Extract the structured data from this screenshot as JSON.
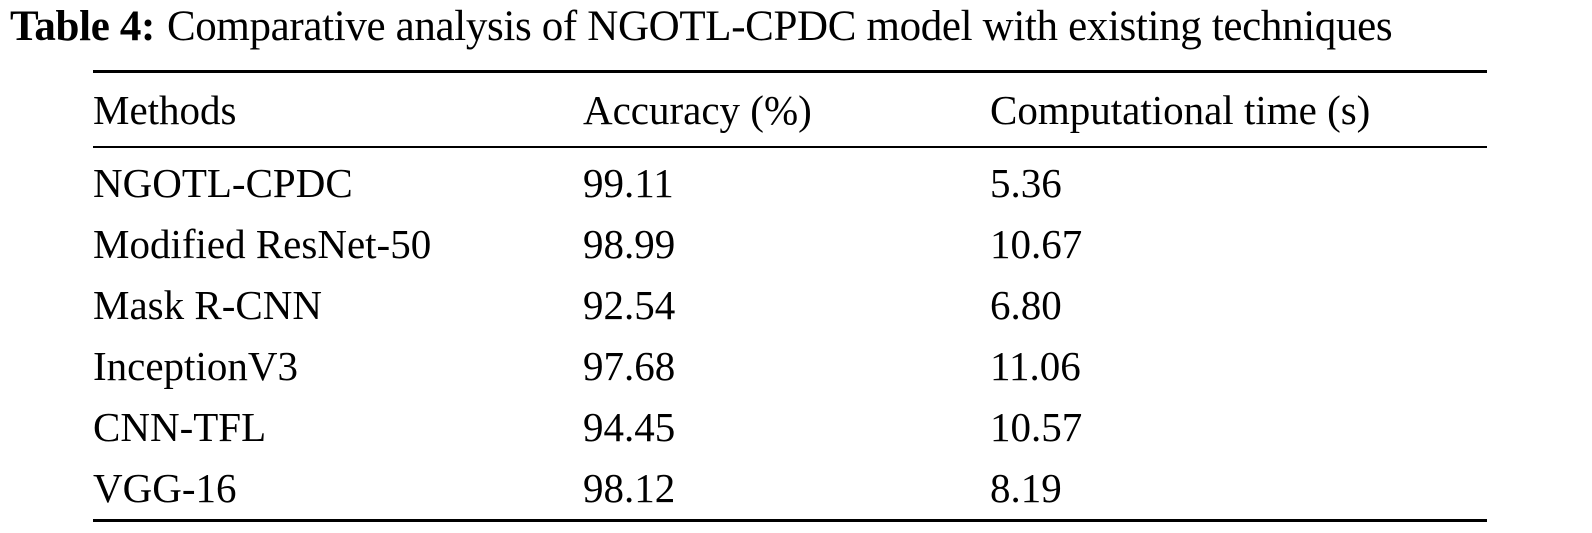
{
  "caption": {
    "label": "Table 4:",
    "text": "Comparative analysis of NGOTL-CPDC model with existing techniques"
  },
  "table": {
    "headers": [
      "Methods",
      "Accuracy (%)",
      "Computational time (s)"
    ],
    "rows": [
      [
        "NGOTL-CPDC",
        "99.11",
        "5.36"
      ],
      [
        "Modified ResNet-50",
        "98.99",
        "10.67"
      ],
      [
        "Mask R-CNN",
        "92.54",
        "6.80"
      ],
      [
        "InceptionV3",
        "97.68",
        "11.06"
      ],
      [
        "CNN-TFL",
        "94.45",
        "10.57"
      ],
      [
        "VGG-16",
        "98.12",
        "8.19"
      ]
    ]
  }
}
